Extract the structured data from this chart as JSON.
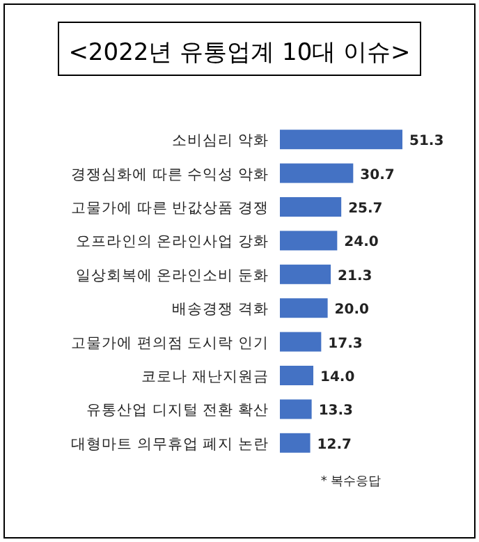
{
  "chart_data": {
    "type": "bar",
    "orientation": "horizontal",
    "title": "<2022년 유통업계 10대 이슈>",
    "categories": [
      "소비심리 악화",
      "경쟁심화에 따른 수익성 악화",
      "고물가에 따른 반값상품 경쟁",
      "오프라인의 온라인사업 강화",
      "일상회복에 온라인소비 둔화",
      "배송경쟁 격화",
      "고물가에 편의점 도시락 인기",
      "코로나 재난지원금",
      "유통산업 디지털 전환 확산",
      "대형마트 의무휴업 폐지 논란"
    ],
    "values": [
      51.3,
      30.7,
      25.7,
      24.0,
      21.3,
      20.0,
      17.3,
      14.0,
      13.3,
      12.7
    ],
    "value_labels": [
      "51.3",
      "30.7",
      "25.7",
      "24.0",
      "21.3",
      "20.0",
      "17.3",
      "14.0",
      "13.3",
      "12.7"
    ],
    "color": "#4472c4",
    "annotations": [
      "* 복수응답"
    ]
  }
}
